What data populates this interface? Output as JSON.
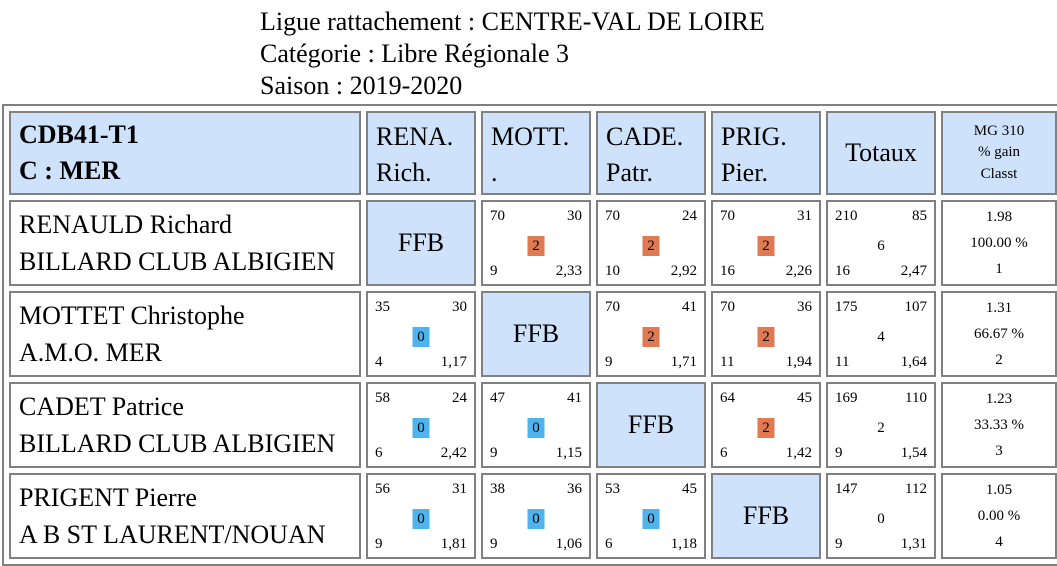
{
  "header": {
    "ligue": "Ligue rattachement : CENTRE-VAL DE LOIRE",
    "categorie": "Catégorie : Libre Régionale 3",
    "saison": "Saison : 2019-2020"
  },
  "table_head": {
    "title_line1": "CDB41-T1",
    "title_line2": "C : MER",
    "opponents": [
      {
        "line1": "RENA.",
        "line2": "Rich."
      },
      {
        "line1": "MOTT.",
        "line2": "."
      },
      {
        "line1": "CADE.",
        "line2": "Patr."
      },
      {
        "line1": "PRIG.",
        "line2": "Pier."
      }
    ],
    "totaux": "Totaux",
    "mg_line1": "MG 310",
    "mg_line2": "% gain",
    "mg_line3": "Classt"
  },
  "ffb_label": "FFB",
  "colors": {
    "header_bg": "#cfe2fb",
    "win": "#e07a52",
    "loss": "#4fb4ee",
    "border": "#808080"
  },
  "rows": [
    {
      "name": "RENAULD Richard",
      "club": "BILLARD CLUB ALBIGIEN",
      "cells": [
        null,
        {
          "tl": "70",
          "tr": "30",
          "mid": "2",
          "bl": "9",
          "br": "2,33"
        },
        {
          "tl": "70",
          "tr": "24",
          "mid": "2",
          "bl": "10",
          "br": "2,92"
        },
        {
          "tl": "70",
          "tr": "31",
          "mid": "2",
          "bl": "16",
          "br": "2,26"
        }
      ],
      "totaux": {
        "tl": "210",
        "tr": "85",
        "mid": "6",
        "bl": "16",
        "br": "2,47"
      },
      "mg": {
        "moyenne": "1.98",
        "gain": "100.00 %",
        "classt": "1"
      }
    },
    {
      "name": "MOTTET Christophe",
      "club": "A.M.O. MER",
      "cells": [
        {
          "tl": "35",
          "tr": "30",
          "mid": "0",
          "bl": "4",
          "br": "1,17"
        },
        null,
        {
          "tl": "70",
          "tr": "41",
          "mid": "2",
          "bl": "9",
          "br": "1,71"
        },
        {
          "tl": "70",
          "tr": "36",
          "mid": "2",
          "bl": "11",
          "br": "1,94"
        }
      ],
      "totaux": {
        "tl": "175",
        "tr": "107",
        "mid": "4",
        "bl": "11",
        "br": "1,64"
      },
      "mg": {
        "moyenne": "1.31",
        "gain": "66.67 %",
        "classt": "2"
      }
    },
    {
      "name": "CADET Patrice",
      "club": "BILLARD CLUB ALBIGIEN",
      "cells": [
        {
          "tl": "58",
          "tr": "24",
          "mid": "0",
          "bl": "6",
          "br": "2,42"
        },
        {
          "tl": "47",
          "tr": "41",
          "mid": "0",
          "bl": "9",
          "br": "1,15"
        },
        null,
        {
          "tl": "64",
          "tr": "45",
          "mid": "2",
          "bl": "6",
          "br": "1,42"
        }
      ],
      "totaux": {
        "tl": "169",
        "tr": "110",
        "mid": "2",
        "bl": "9",
        "br": "1,54"
      },
      "mg": {
        "moyenne": "1.23",
        "gain": "33.33 %",
        "classt": "3"
      }
    },
    {
      "name": "PRIGENT Pierre",
      "club": "A B ST LAURENT/NOUAN",
      "cells": [
        {
          "tl": "56",
          "tr": "31",
          "mid": "0",
          "bl": "9",
          "br": "1,81"
        },
        {
          "tl": "38",
          "tr": "36",
          "mid": "0",
          "bl": "9",
          "br": "1,06"
        },
        {
          "tl": "53",
          "tr": "45",
          "mid": "0",
          "bl": "6",
          "br": "1,18"
        },
        null
      ],
      "totaux": {
        "tl": "147",
        "tr": "112",
        "mid": "0",
        "bl": "9",
        "br": "1,31"
      },
      "mg": {
        "moyenne": "1.05",
        "gain": "0.00 %",
        "classt": "4"
      }
    }
  ]
}
